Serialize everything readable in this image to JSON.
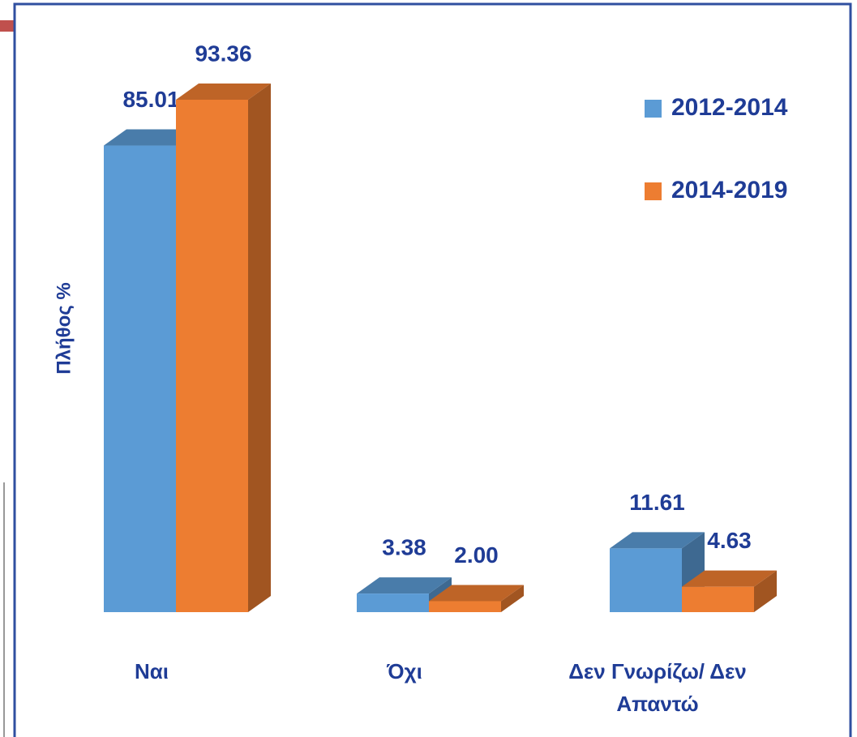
{
  "chart_data": {
    "type": "bar3d",
    "y_axis_label": "Πλήθος %",
    "categories": [
      "Ναι",
      "Όχι",
      "Δεν Γνωρίζω/ Δεν Απαντώ"
    ],
    "series": [
      {
        "name": "2012-2014",
        "color": "#5b9bd5",
        "values": [
          85.01,
          3.38,
          11.61
        ],
        "value_labels": [
          "85.01",
          "3.38",
          "11.61"
        ]
      },
      {
        "name": "2014-2019",
        "color": "#ed7d31",
        "values": [
          93.36,
          2.0,
          4.63
        ],
        "value_labels": [
          "93.36",
          "2.00",
          "4.63"
        ]
      }
    ],
    "legend": "upper right"
  }
}
